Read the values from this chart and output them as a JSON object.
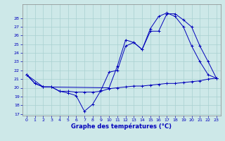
{
  "xlabel": "Graphe des températures (°C)",
  "bg_color": "#cde8e8",
  "line_color": "#0000bb",
  "grid_color": "#a8d0d0",
  "ylim": [
    17,
    29
  ],
  "xlim": [
    -0.5,
    23.5
  ],
  "yticks": [
    17,
    18,
    19,
    20,
    21,
    22,
    23,
    24,
    25,
    26,
    27,
    28
  ],
  "xticks": [
    0,
    1,
    2,
    3,
    4,
    5,
    6,
    7,
    8,
    9,
    10,
    11,
    12,
    13,
    14,
    15,
    16,
    17,
    18,
    19,
    20,
    21,
    22,
    23
  ],
  "line1_x": [
    0,
    1,
    2,
    3,
    4,
    5,
    6,
    7,
    8,
    9,
    10,
    11,
    12,
    13,
    14,
    15,
    16,
    17,
    18,
    19,
    20,
    21,
    22,
    23
  ],
  "line1_y": [
    21.5,
    20.5,
    20.1,
    20.1,
    19.6,
    19.6,
    19.5,
    19.5,
    19.5,
    19.6,
    19.9,
    20.0,
    20.1,
    20.2,
    20.2,
    20.3,
    20.4,
    20.5,
    20.5,
    20.6,
    20.7,
    20.8,
    21.0,
    21.1
  ],
  "line2_x": [
    0,
    1,
    2,
    3,
    4,
    5,
    6,
    7,
    8,
    9,
    10,
    11,
    12,
    13,
    14,
    15,
    16,
    17,
    18,
    19,
    20,
    21,
    22,
    23
  ],
  "line2_y": [
    21.5,
    20.5,
    20.1,
    20.1,
    19.6,
    19.4,
    19.1,
    17.3,
    18.1,
    19.7,
    21.8,
    22.0,
    24.8,
    25.2,
    24.4,
    26.8,
    28.2,
    28.6,
    28.2,
    27.0,
    24.8,
    23.0,
    21.5,
    21.1
  ],
  "line3_x": [
    0,
    2,
    10,
    11,
    12,
    13,
    14,
    15,
    16,
    17,
    18,
    19,
    20,
    21,
    22,
    23
  ],
  "line3_y": [
    21.5,
    20.1,
    20.0,
    22.5,
    25.5,
    25.2,
    24.4,
    26.5,
    26.5,
    28.5,
    28.5,
    27.8,
    27.0,
    24.8,
    23.0,
    21.1
  ]
}
